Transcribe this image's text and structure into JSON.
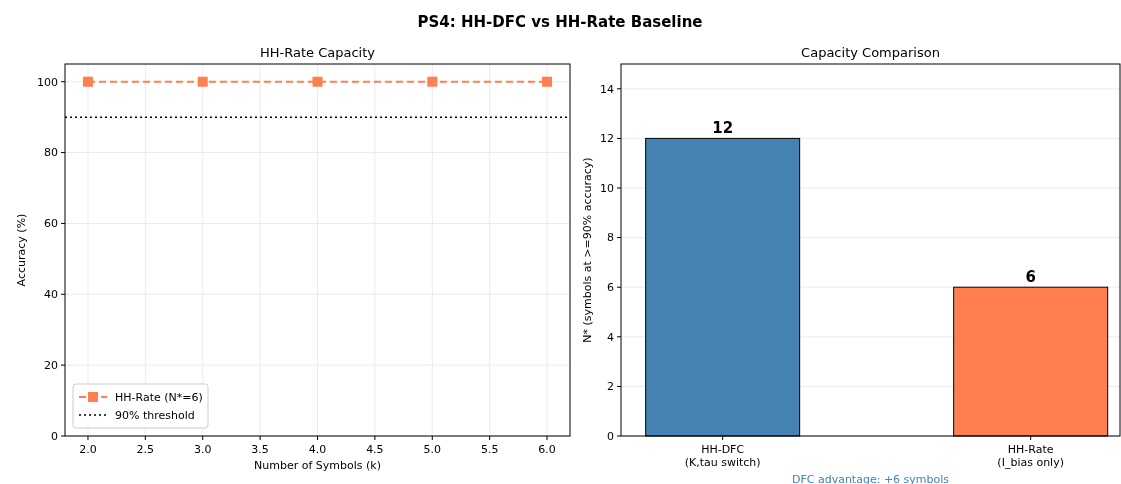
{
  "chart_data": [
    {
      "type": "line",
      "title": "HH-Rate Capacity",
      "xlabel": "Number of Symbols (k)",
      "ylabel": "Accuracy (%)",
      "annotations": [
        "PS4: HH-DFC vs HH-Rate Baseline"
      ],
      "x": [
        2,
        3,
        4,
        5,
        6
      ],
      "series": [
        {
          "name": "HH-Rate (N*=6)",
          "color": "#ff7f50",
          "values": [
            100,
            100,
            100,
            100,
            100
          ]
        }
      ],
      "xlim": [
        1.8,
        6.2
      ],
      "xticks": [
        {
          "value": 2,
          "label": "2.0"
        },
        {
          "value": 2.5,
          "label": "2.5"
        },
        {
          "value": 3,
          "label": "3.0"
        },
        {
          "value": 3.5,
          "label": "3.5"
        },
        {
          "value": 4,
          "label": "4.0"
        },
        {
          "value": 4.5,
          "label": "4.5"
        },
        {
          "value": 5,
          "label": "5.0"
        },
        {
          "value": 5.5,
          "label": "5.5"
        },
        {
          "value": 6,
          "label": "6.0"
        }
      ],
      "ylim": [
        0,
        105
      ],
      "yticks": [
        0,
        20,
        40,
        60,
        80,
        100
      ],
      "ref_lines": [
        {
          "axis": "y",
          "value": 90,
          "label": "90% threshold",
          "color": "#000000",
          "line_style": "dotted"
        }
      ],
      "grid": true,
      "legend": "bottom left",
      "marker": "square",
      "line_style": "dashed"
    },
    {
      "type": "bar",
      "title": "Capacity Comparison",
      "ylabel": "N* (symbols at >=90% accuracy)",
      "annotations": [
        "DFC advantage: +6 symbols"
      ],
      "categories": [
        "HH-DFC\n(K,tau switch)",
        "HH-Rate\n(I_bias only)"
      ],
      "values": [
        12,
        6
      ],
      "colors": [
        "#4682b4",
        "#ff7f50"
      ],
      "ylim": [
        0,
        15
      ],
      "yticks": [
        0,
        2,
        4,
        6,
        8,
        10,
        12,
        14
      ],
      "grid": "y",
      "data_labels": true
    }
  ]
}
